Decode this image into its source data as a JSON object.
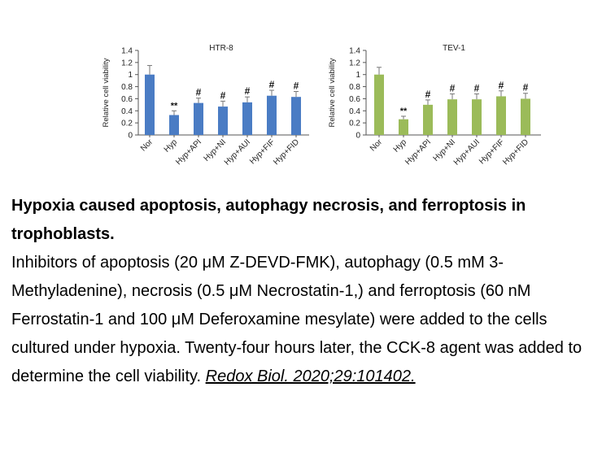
{
  "chart_data": [
    {
      "type": "bar",
      "title": "HTR-8",
      "ylabel": "Relative cell viability",
      "categories": [
        "Nor",
        "Hyp",
        "Hyp+API",
        "Hyp+NI",
        "Hyp+AUI",
        "Hyp+FIF",
        "Hyp+FID"
      ],
      "values": [
        1.0,
        0.33,
        0.53,
        0.47,
        0.54,
        0.65,
        0.63
      ],
      "errors": [
        0.15,
        0.07,
        0.08,
        0.09,
        0.09,
        0.09,
        0.09
      ],
      "significance": [
        "",
        "**",
        "#",
        "#",
        "#",
        "#",
        "#"
      ],
      "yticks": [
        "0",
        "0.2",
        "0.4",
        "0.6",
        "0.8",
        "1",
        "1.2",
        "1.4"
      ],
      "ylim": [
        0,
        1.4
      ],
      "color": "#4a7cc4"
    },
    {
      "type": "bar",
      "title": "TEV-1",
      "ylabel": "Relative cell viability",
      "categories": [
        "Nor",
        "Hyp",
        "Hyp+API",
        "Hyp+NI",
        "Hyp+AUI",
        "Hyp+FIF",
        "Hyp+FID"
      ],
      "values": [
        1.0,
        0.26,
        0.5,
        0.59,
        0.59,
        0.64,
        0.6
      ],
      "errors": [
        0.12,
        0.05,
        0.08,
        0.09,
        0.09,
        0.09,
        0.09
      ],
      "significance": [
        "",
        "**",
        "#",
        "#",
        "#",
        "#",
        "#"
      ],
      "yticks": [
        "0",
        "0.2",
        "0.4",
        "0.6",
        "0.8",
        "1",
        "1.2",
        "1.4"
      ],
      "ylim": [
        0,
        1.4
      ],
      "color": "#9bbb59"
    }
  ],
  "caption": {
    "title": "Hypoxia caused apoptosis, autophagy necrosis, and ferroptosis in trophoblasts.",
    "body": "Inhibitors of apoptosis (20 μM Z-DEVD-FMK), autophagy (0.5 mM 3-Methyladenine), necrosis (0.5 μM Necrostatin-1,) and ferroptosis (60 nM Ferrostatin-1 and 100 μM Deferoxamine mesylate) were added to the cells cultured under hypoxia. Twenty-four hours later, the CCK-8 agent was added to determine the cell viability. ",
    "citation": "Redox Biol. 2020;29:101402."
  }
}
